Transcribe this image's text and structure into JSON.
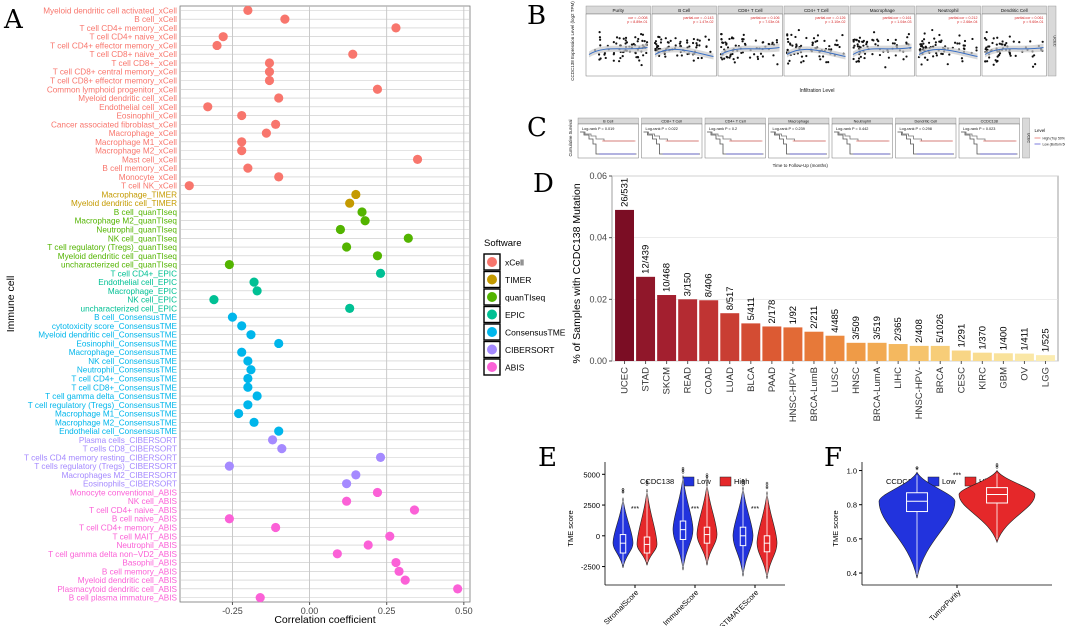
{
  "panels": {
    "A": "A",
    "B": "B",
    "C": "C",
    "D": "D",
    "E": "E",
    "F": "F"
  },
  "chart_data": [
    {
      "panel": "A",
      "type": "scatter",
      "xlabel": "Correlation coefficient",
      "ylabel": "Immune cell",
      "xlim": [
        -0.42,
        0.52
      ],
      "xticks": [
        -0.25,
        0.0,
        0.25,
        0.5
      ],
      "xtick_labels": [
        "-0.25",
        "0.00",
        "0.25",
        "0.50"
      ],
      "legend": {
        "title": "Software",
        "entries": [
          "xCell",
          "TIMER",
          "quanTIseq",
          "EPIC",
          "ConsensusTME",
          "CIBERSORT",
          "ABIS"
        ],
        "colors": [
          "#F8766D",
          "#C49A00",
          "#53B400",
          "#00C094",
          "#00B6EB",
          "#A58AFF",
          "#FB61D7"
        ]
      },
      "points": [
        {
          "label": "Myeloid dendritic cell activated_xCell",
          "value": -0.2,
          "software": "xCell"
        },
        {
          "label": "B cell_xCell",
          "value": -0.08,
          "software": "xCell"
        },
        {
          "label": "T cell CD4+ memory_xCell",
          "value": 0.28,
          "software": "xCell"
        },
        {
          "label": "T cell CD4+ naive_xCell",
          "value": -0.28,
          "software": "xCell"
        },
        {
          "label": "T cell CD4+ effector memory_xCell",
          "value": -0.3,
          "software": "xCell"
        },
        {
          "label": "T cell CD8+ naive_xCell",
          "value": 0.14,
          "software": "xCell"
        },
        {
          "label": "T cell CD8+_xCell",
          "value": -0.13,
          "software": "xCell"
        },
        {
          "label": "T cell CD8+ central memory_xCell",
          "value": -0.13,
          "software": "xCell"
        },
        {
          "label": "T cell CD8+ effector memory_xCell",
          "value": -0.13,
          "software": "xCell"
        },
        {
          "label": "Common lymphoid progenitor_xCell",
          "value": 0.22,
          "software": "xCell"
        },
        {
          "label": "Myeloid dendritic cell_xCell",
          "value": -0.1,
          "software": "xCell"
        },
        {
          "label": "Endothelial cell_xCell",
          "value": -0.33,
          "software": "xCell"
        },
        {
          "label": "Eosinophil_xCell",
          "value": -0.22,
          "software": "xCell"
        },
        {
          "label": "Cancer associated fibroblast_xCell",
          "value": -0.11,
          "software": "xCell"
        },
        {
          "label": "Macrophage_xCell",
          "value": -0.14,
          "software": "xCell"
        },
        {
          "label": "Macrophage M1_xCell",
          "value": -0.22,
          "software": "xCell"
        },
        {
          "label": "Macrophage M2_xCell",
          "value": -0.22,
          "software": "xCell"
        },
        {
          "label": "Mast cell_xCell",
          "value": 0.35,
          "software": "xCell"
        },
        {
          "label": "B cell memory_xCell",
          "value": -0.2,
          "software": "xCell"
        },
        {
          "label": "Monocyte_xCell",
          "value": -0.1,
          "software": "xCell"
        },
        {
          "label": "T cell NK_xCell",
          "value": -0.39,
          "software": "xCell"
        },
        {
          "label": "Macrophage_TIMER",
          "value": 0.15,
          "software": "TIMER"
        },
        {
          "label": "Myeloid dendritic cell_TIMER",
          "value": 0.13,
          "software": "TIMER"
        },
        {
          "label": "B cell_quanTIseq",
          "value": 0.17,
          "software": "quanTIseq"
        },
        {
          "label": "Macrophage M2_quanTIseq",
          "value": 0.18,
          "software": "quanTIseq"
        },
        {
          "label": "Neutrophil_quanTIseq",
          "value": 0.1,
          "software": "quanTIseq"
        },
        {
          "label": "NK cell_quanTIseq",
          "value": 0.32,
          "software": "quanTIseq"
        },
        {
          "label": "T cell regulatory (Tregs)_quanTIseq",
          "value": 0.12,
          "software": "quanTIseq"
        },
        {
          "label": "Myeloid dendritic cell_quanTIseq",
          "value": 0.22,
          "software": "quanTIseq"
        },
        {
          "label": "uncharacterized cell_quanTIseq",
          "value": -0.26,
          "software": "quanTIseq"
        },
        {
          "label": "T cell CD4+_EPIC",
          "value": 0.23,
          "software": "EPIC"
        },
        {
          "label": "Endothelial cell_EPIC",
          "value": -0.18,
          "software": "EPIC"
        },
        {
          "label": "Macrophage_EPIC",
          "value": -0.17,
          "software": "EPIC"
        },
        {
          "label": "NK cell_EPIC",
          "value": -0.31,
          "software": "EPIC"
        },
        {
          "label": "uncharacterized cell_EPIC",
          "value": 0.13,
          "software": "EPIC"
        },
        {
          "label": "B cell_ConsensusTME",
          "value": -0.25,
          "software": "ConsensusTME"
        },
        {
          "label": "cytotoxicity score_ConsensusTME",
          "value": -0.22,
          "software": "ConsensusTME"
        },
        {
          "label": "Myeloid dendritic cell_ConsensusTME",
          "value": -0.19,
          "software": "ConsensusTME"
        },
        {
          "label": "Eosinophil_ConsensusTME",
          "value": -0.1,
          "software": "ConsensusTME"
        },
        {
          "label": "Macrophage_ConsensusTME",
          "value": -0.22,
          "software": "ConsensusTME"
        },
        {
          "label": "NK cell_ConsensusTME",
          "value": -0.2,
          "software": "ConsensusTME"
        },
        {
          "label": "Neutrophil_ConsensusTME",
          "value": -0.19,
          "software": "ConsensusTME"
        },
        {
          "label": "T cell CD4+_ConsensusTME",
          "value": -0.2,
          "software": "ConsensusTME"
        },
        {
          "label": "T cell CD8+_ConsensusTME",
          "value": -0.2,
          "software": "ConsensusTME"
        },
        {
          "label": "T cell gamma delta_ConsensusTME",
          "value": -0.17,
          "software": "ConsensusTME"
        },
        {
          "label": "T cell regulatory (Tregs)_ConsensusTME",
          "value": -0.2,
          "software": "ConsensusTME"
        },
        {
          "label": "Macrophage M1_ConsensusTME",
          "value": -0.23,
          "software": "ConsensusTME"
        },
        {
          "label": "Macrophage M2_ConsensusTME",
          "value": -0.18,
          "software": "ConsensusTME"
        },
        {
          "label": "Endothelial cell_ConsensusTME",
          "value": -0.1,
          "software": "ConsensusTME"
        },
        {
          "label": "Plasma cells_CIBERSORT",
          "value": -0.12,
          "software": "CIBERSORT"
        },
        {
          "label": "T cells CD8_CIBERSORT",
          "value": -0.09,
          "software": "CIBERSORT"
        },
        {
          "label": "T cells CD4 memory resting_CIBERSORT",
          "value": 0.23,
          "software": "CIBERSORT"
        },
        {
          "label": "T cells regulatory (Tregs)_CIBERSORT",
          "value": -0.26,
          "software": "CIBERSORT"
        },
        {
          "label": "Macrophages M2_CIBERSORT",
          "value": 0.15,
          "software": "CIBERSORT"
        },
        {
          "label": "Eosinophils_CIBERSORT",
          "value": 0.12,
          "software": "CIBERSORT"
        },
        {
          "label": "Monocyte conventional_ABIS",
          "value": 0.22,
          "software": "ABIS"
        },
        {
          "label": "NK cell_ABIS",
          "value": 0.12,
          "software": "ABIS"
        },
        {
          "label": "T cell CD4+ naive_ABIS",
          "value": 0.34,
          "software": "ABIS"
        },
        {
          "label": "B cell naive_ABIS",
          "value": -0.26,
          "software": "ABIS"
        },
        {
          "label": "T cell CD4+ memory_ABIS",
          "value": -0.11,
          "software": "ABIS"
        },
        {
          "label": "T cell MAIT_ABIS",
          "value": 0.26,
          "software": "ABIS"
        },
        {
          "label": "Neutrophil_ABIS",
          "value": 0.19,
          "software": "ABIS"
        },
        {
          "label": "T cell gamma delta non−VD2_ABIS",
          "value": 0.09,
          "software": "ABIS"
        },
        {
          "label": "Basophil_ABIS",
          "value": 0.28,
          "software": "ABIS"
        },
        {
          "label": "B cell memory_ABIS",
          "value": 0.29,
          "software": "ABIS"
        },
        {
          "label": "Myeloid dendritic cell_ABIS",
          "value": 0.31,
          "software": "ABIS"
        },
        {
          "label": "Plasmacytoid dendritic cell_ABIS",
          "value": 0.48,
          "software": "ABIS"
        },
        {
          "label": "B cell plasma immature_ABIS",
          "value": -0.16,
          "software": "ABIS"
        }
      ]
    },
    {
      "panel": "B",
      "type": "scatter",
      "ylabel": "CCDC138 Expression Level (log2 TPM)",
      "xlabel": "Infiltration Level",
      "rowlabel": "UCEC",
      "facets": [
        {
          "title": "Purity",
          "stat1": "cor = -0.008",
          "stat2": "p = 8.89e-01"
        },
        {
          "title": "B Cell",
          "stat1": "partial.cor = -0.143",
          "stat2": "p = 1.47e-02"
        },
        {
          "title": "CD8+ T Cell",
          "stat1": "partial.cor = 0.106",
          "stat2": "p = 7.03e-04"
        },
        {
          "title": "CD4+ T Cell",
          "stat1": "partial.cor = -0.126",
          "stat2": "p = 3.10e-02"
        },
        {
          "title": "Macrophage",
          "stat1": "partial.cor = 0.161",
          "stat2": "p = 1.04e-03"
        },
        {
          "title": "Neutrophil",
          "stat1": "partial.cor = 0.212",
          "stat2": "p = 2.66e-04"
        },
        {
          "title": "Dendritic Cell",
          "stat1": "partial.cor = 0.061",
          "stat2": "p = 9.60e-01"
        }
      ]
    },
    {
      "panel": "C",
      "type": "line",
      "ylabel": "Cumulative Survival",
      "xlabel": "Time to Follow-Up (months)",
      "legend_title": "Level",
      "legend": [
        "High (Top 50%)",
        "Low (Bottom 50%)"
      ],
      "legend_colors": [
        "#E8766E",
        "#5B5BD6"
      ],
      "rowlabel": "UCEC",
      "facets": [
        {
          "title": "B Cell",
          "stat": "Log-rank P = 0.019"
        },
        {
          "title": "CD8+ T Cell",
          "stat": "Log-rank P = 0.022"
        },
        {
          "title": "CD4+ T Cell",
          "stat": "Log-rank P = 0.2"
        },
        {
          "title": "Macrophage",
          "stat": "Log-rank P = 0.239"
        },
        {
          "title": "Neutrophil",
          "stat": "Log-rank P = 0.442"
        },
        {
          "title": "Dendritic Cell",
          "stat": "Log-rank P = 0.298"
        },
        {
          "title": "CCDC138",
          "stat": "Log-rank P = 0.023"
        }
      ]
    },
    {
      "panel": "D",
      "type": "bar",
      "ylabel": "% of Samples with CCDC138 Mutation",
      "ylim": [
        0,
        0.06
      ],
      "yticks": [
        0.0,
        0.02,
        0.04,
        0.06
      ],
      "ytick_labels": [
        "0.00",
        "0.02",
        "0.04",
        "0.06"
      ],
      "categories": [
        "UCEC",
        "STAD",
        "SKCM",
        "READ",
        "COAD",
        "LUAD",
        "BLCA",
        "PAAD",
        "HNSC-HPV+",
        "BRCA-LumB",
        "LUSC",
        "HNSC",
        "BRCA-LumA",
        "LIHC",
        "HNSC-HPV-",
        "BRCA",
        "CESC",
        "KIRC",
        "GBM",
        "OV",
        "LGG"
      ],
      "values": [
        0.049,
        0.0273,
        0.0214,
        0.02,
        0.0197,
        0.0155,
        0.0122,
        0.0112,
        0.0109,
        0.0095,
        0.0082,
        0.0059,
        0.0059,
        0.0055,
        0.0049,
        0.0049,
        0.0034,
        0.0027,
        0.0025,
        0.0024,
        0.0019
      ],
      "labels": [
        "26/531",
        "12/439",
        "10/468",
        "3/150",
        "8/406",
        "8/517",
        "5/411",
        "2/178",
        "1/92",
        "2/211",
        "4/485",
        "3/509",
        "3/519",
        "2/365",
        "2/408",
        "5/1026",
        "1/291",
        "1/370",
        "1/400",
        "1/411",
        "1/525"
      ],
      "colors": [
        "#7B0D24",
        "#90172A",
        "#A31F2F",
        "#B42B32",
        "#C03433",
        "#C93E33",
        "#D34C33",
        "#DC5A33",
        "#E26A36",
        "#E77939",
        "#EC8A3E",
        "#EF9B47",
        "#F2AA52",
        "#F4B85F",
        "#F6C46C",
        "#F7CD78",
        "#F8D585",
        "#F9DC90",
        "#F9E29B",
        "#FAE7A6",
        "#FBECB1"
      ]
    },
    {
      "panel": "E",
      "type": "violin",
      "legend_title": "CCDC138",
      "legend": [
        "Low",
        "High"
      ],
      "ylabel": "TME score",
      "yticks": [
        -2500,
        0,
        2500,
        5000
      ],
      "ytick_labels": [
        "-2500",
        "0",
        "2500",
        "5000"
      ],
      "ylim": [
        -4000,
        6000
      ],
      "categories": [
        "StromalScore",
        "ImmuneScore",
        "ESTIMATEScore"
      ],
      "series": [
        {
          "name": "Low",
          "medians": [
            -600,
            500,
            0
          ]
        },
        {
          "name": "High",
          "medians": [
            -700,
            100,
            -600
          ]
        }
      ],
      "significance": [
        "***",
        "***",
        "***"
      ]
    },
    {
      "panel": "F",
      "type": "violin",
      "legend_title": "CCDC138",
      "legend": [
        "Low",
        "High"
      ],
      "ylabel": "TME score",
      "yticks": [
        0.4,
        0.6,
        0.8,
        1.0
      ],
      "ytick_labels": [
        "0.4",
        "0.6",
        "0.8",
        "1.0"
      ],
      "ylim": [
        0.33,
        1.05
      ],
      "categories": [
        "TumorPurity"
      ],
      "series": [
        {
          "name": "Low",
          "medians": [
            0.82
          ]
        },
        {
          "name": "High",
          "medians": [
            0.86
          ]
        }
      ],
      "significance": [
        "***"
      ]
    }
  ]
}
